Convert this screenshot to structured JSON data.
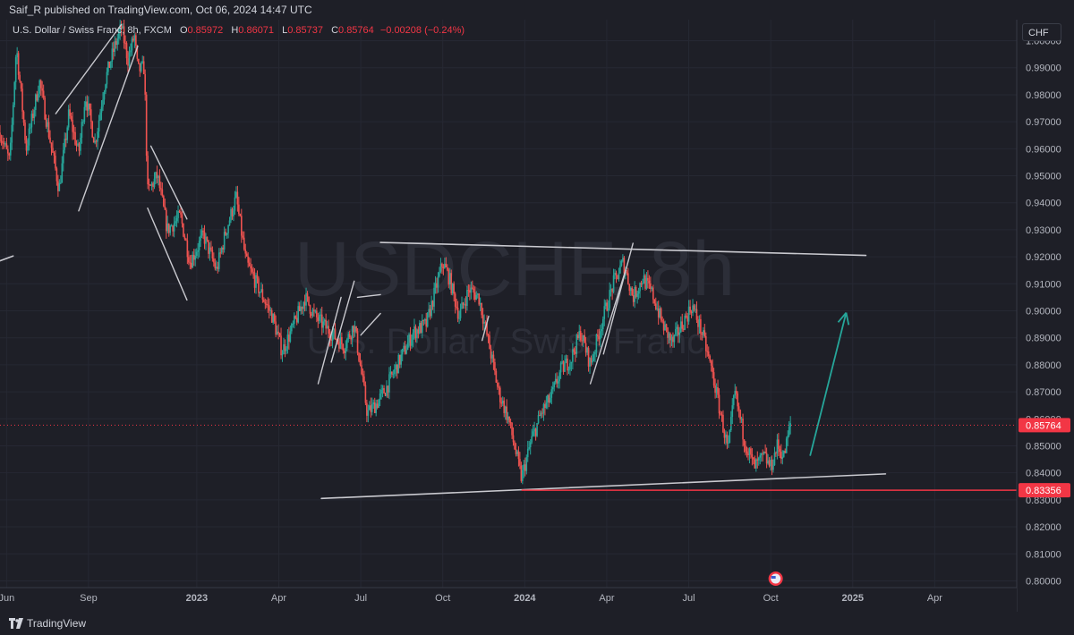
{
  "header": {
    "published_text": "Saif_R published on TradingView.com, Oct 06, 2024 14:47 UTC"
  },
  "legend": {
    "instrument": "U.S. Dollar / Swiss Franc, 8h, FXCM",
    "o_label": "O",
    "o_value": "0.85972",
    "h_label": "H",
    "h_value": "0.86071",
    "l_label": "L",
    "l_value": "0.85737",
    "c_label": "C",
    "c_value": "0.85764",
    "change": "−0.00208 (−0.24%)"
  },
  "currency_badge": "CHF",
  "watermark": {
    "symbol": "USDCHF, 8h",
    "name": "U.S. Dollar / Swiss Franc"
  },
  "footer": {
    "brand": "TradingView"
  },
  "colors": {
    "background": "#1e1f27",
    "up": "#26a69a",
    "down": "#ef5350",
    "lines": "#c9c9cf",
    "arrow": "#26a69a",
    "price_tag": "#f23645"
  },
  "chart_data": {
    "type": "candlestick",
    "ylim": [
      0.7975,
      1.0078
    ],
    "y_ticks": [
      "1.00000",
      "0.99000",
      "0.98000",
      "0.97000",
      "0.96000",
      "0.95000",
      "0.94000",
      "0.93000",
      "0.92000",
      "0.91000",
      "0.90000",
      "0.89000",
      "0.88000",
      "0.87000",
      "0.86000",
      "0.85000",
      "0.84000",
      "0.83000",
      "0.82000",
      "0.81000",
      "0.80000"
    ],
    "x_ticks": [
      {
        "label": "Jun",
        "t": 2022.42,
        "bold": false
      },
      {
        "label": "Sep",
        "t": 2022.67,
        "bold": false
      },
      {
        "label": "2023",
        "t": 2023.0,
        "bold": true
      },
      {
        "label": "Apr",
        "t": 2023.25,
        "bold": false
      },
      {
        "label": "Jul",
        "t": 2023.5,
        "bold": false
      },
      {
        "label": "Oct",
        "t": 2023.75,
        "bold": false
      },
      {
        "label": "2024",
        "t": 2024.0,
        "bold": true
      },
      {
        "label": "Apr",
        "t": 2024.25,
        "bold": false
      },
      {
        "label": "Jul",
        "t": 2024.5,
        "bold": false
      },
      {
        "label": "Oct",
        "t": 2024.75,
        "bold": false
      },
      {
        "label": "2025",
        "t": 2025.0,
        "bold": true
      },
      {
        "label": "Apr",
        "t": 2025.25,
        "bold": false
      }
    ],
    "xlim": [
      2022.4,
      2025.5
    ],
    "price_path": [
      [
        2022.4,
        0.966
      ],
      [
        2022.43,
        0.955
      ],
      [
        2022.45,
        0.998
      ],
      [
        2022.48,
        0.96
      ],
      [
        2022.52,
        0.985
      ],
      [
        2022.58,
        0.945
      ],
      [
        2022.61,
        0.973
      ],
      [
        2022.64,
        0.958
      ],
      [
        2022.66,
        0.98
      ],
      [
        2022.69,
        0.962
      ],
      [
        2022.72,
        0.985
      ],
      [
        2022.75,
        0.998
      ],
      [
        2022.77,
        1.005
      ],
      [
        2022.79,
        0.993
      ],
      [
        2022.81,
        1.002
      ],
      [
        2022.82,
        0.989
      ],
      [
        2022.84,
        0.99
      ],
      [
        2022.85,
        0.944
      ],
      [
        2022.88,
        0.95
      ],
      [
        2022.91,
        0.93
      ],
      [
        2022.95,
        0.935
      ],
      [
        2022.98,
        0.918
      ],
      [
        2023.02,
        0.928
      ],
      [
        2023.06,
        0.915
      ],
      [
        2023.09,
        0.93
      ],
      [
        2023.12,
        0.942
      ],
      [
        2023.15,
        0.918
      ],
      [
        2023.19,
        0.908
      ],
      [
        2023.23,
        0.898
      ],
      [
        2023.26,
        0.885
      ],
      [
        2023.29,
        0.893
      ],
      [
        2023.33,
        0.905
      ],
      [
        2023.36,
        0.898
      ],
      [
        2023.4,
        0.893
      ],
      [
        2023.45,
        0.887
      ],
      [
        2023.48,
        0.895
      ],
      [
        2023.52,
        0.862
      ],
      [
        2023.55,
        0.866
      ],
      [
        2023.58,
        0.872
      ],
      [
        2023.62,
        0.882
      ],
      [
        2023.66,
        0.892
      ],
      [
        2023.7,
        0.895
      ],
      [
        2023.75,
        0.918
      ],
      [
        2023.77,
        0.912
      ],
      [
        2023.8,
        0.898
      ],
      [
        2023.83,
        0.908
      ],
      [
        2023.86,
        0.905
      ],
      [
        2023.89,
        0.888
      ],
      [
        2023.92,
        0.87
      ],
      [
        2023.95,
        0.86
      ],
      [
        2023.99,
        0.838
      ],
      [
        2024.02,
        0.852
      ],
      [
        2024.05,
        0.862
      ],
      [
        2024.08,
        0.868
      ],
      [
        2024.11,
        0.878
      ],
      [
        2024.14,
        0.882
      ],
      [
        2024.17,
        0.892
      ],
      [
        2024.2,
        0.88
      ],
      [
        2024.24,
        0.898
      ],
      [
        2024.27,
        0.91
      ],
      [
        2024.3,
        0.918
      ],
      [
        2024.33,
        0.905
      ],
      [
        2024.36,
        0.912
      ],
      [
        2024.39,
        0.906
      ],
      [
        2024.42,
        0.895
      ],
      [
        2024.45,
        0.888
      ],
      [
        2024.48,
        0.895
      ],
      [
        2024.51,
        0.902
      ],
      [
        2024.54,
        0.892
      ],
      [
        2024.57,
        0.878
      ],
      [
        2024.6,
        0.86
      ],
      [
        2024.62,
        0.848
      ],
      [
        2024.64,
        0.87
      ],
      [
        2024.67,
        0.852
      ],
      [
        2024.7,
        0.842
      ],
      [
        2024.73,
        0.846
      ],
      [
        2024.75,
        0.842
      ],
      [
        2024.77,
        0.85
      ],
      [
        2024.79,
        0.846
      ],
      [
        2024.81,
        0.858
      ]
    ],
    "last_price": "0.85764",
    "support_level": "0.83356",
    "annotations": {
      "resistance_line": [
        [
          2023.56,
          0.9253
        ],
        [
          2025.04,
          0.9205
        ]
      ],
      "support_line": [
        [
          2023.38,
          0.8305
        ],
        [
          2025.1,
          0.8396
        ]
      ],
      "left_stub": [
        [
          2022.4,
          0.9185
        ],
        [
          2022.44,
          0.9203
        ]
      ],
      "channels": [
        [
          [
            2022.57,
            0.973
          ],
          [
            2022.77,
            1.006
          ]
        ],
        [
          [
            2022.64,
            0.937
          ],
          [
            2022.82,
            0.998
          ]
        ],
        [
          [
            2022.86,
            0.961
          ],
          [
            2022.97,
            0.934
          ]
        ],
        [
          [
            2022.85,
            0.938
          ],
          [
            2022.97,
            0.904
          ]
        ],
        [
          [
            2023.41,
            0.881
          ],
          [
            2023.48,
            0.911
          ]
        ],
        [
          [
            2023.37,
            0.873
          ],
          [
            2023.44,
            0.905
          ]
        ],
        [
          [
            2023.49,
            0.905
          ],
          [
            2023.56,
            0.906
          ]
        ],
        [
          [
            2023.5,
            0.891
          ],
          [
            2023.56,
            0.899
          ]
        ],
        [
          [
            2023.87,
            0.889
          ],
          [
            2023.89,
            0.898
          ]
        ],
        [
          [
            2024.2,
            0.873
          ],
          [
            2024.31,
            0.916
          ]
        ],
        [
          [
            2024.24,
            0.884
          ],
          [
            2024.33,
            0.925
          ]
        ]
      ],
      "arrow": [
        [
          2024.87,
          0.8463
        ],
        [
          2024.98,
          0.8993
        ]
      ]
    }
  }
}
